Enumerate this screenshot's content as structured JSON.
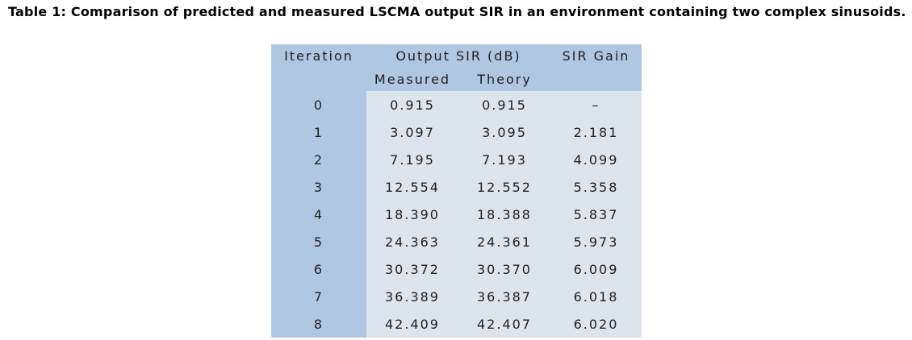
{
  "caption": {
    "text": "Table 1: Comparison of predicted and measured LSCMA output SIR in an environment containing two complex sinusoids."
  },
  "table": {
    "colors": {
      "header_bg": "#b0c7e1",
      "body_bg": "#dce4ee",
      "text": "#1f1f1f"
    },
    "columns": {
      "iteration": "Iteration",
      "output_sir_group": "Output SIR (dB)",
      "measured": "Measured",
      "theory": "Theory",
      "sir_gain": "SIR Gain"
    },
    "rows": [
      {
        "iteration": "0",
        "measured": "0.915",
        "theory": "0.915",
        "gain": "–"
      },
      {
        "iteration": "1",
        "measured": "3.097",
        "theory": "3.095",
        "gain": "2.181"
      },
      {
        "iteration": "2",
        "measured": "7.195",
        "theory": "7.193",
        "gain": "4.099"
      },
      {
        "iteration": "3",
        "measured": "12.554",
        "theory": "12.552",
        "gain": "5.358"
      },
      {
        "iteration": "4",
        "measured": "18.390",
        "theory": "18.388",
        "gain": "5.837"
      },
      {
        "iteration": "5",
        "measured": "24.363",
        "theory": "24.361",
        "gain": "5.973"
      },
      {
        "iteration": "6",
        "measured": "30.372",
        "theory": "30.370",
        "gain": "6.009"
      },
      {
        "iteration": "7",
        "measured": "36.389",
        "theory": "36.387",
        "gain": "6.018"
      },
      {
        "iteration": "8",
        "measured": "42.409",
        "theory": "42.407",
        "gain": "6.020"
      }
    ]
  }
}
